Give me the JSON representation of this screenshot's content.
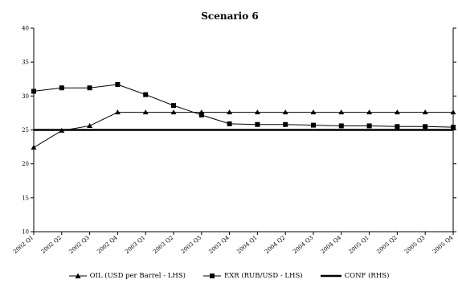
{
  "chart_data": {
    "type": "line",
    "title": "Scenario 6",
    "xlabel": "",
    "ylabel": "",
    "ylim": [
      10,
      40
    ],
    "yticks": [
      10,
      15,
      20,
      25,
      30,
      35,
      40
    ],
    "categories": [
      "2002 Q1",
      "2002 Q2",
      "2002 Q3",
      "2002 Q4",
      "2003 Q1",
      "2003 Q2",
      "2003 Q3",
      "2003 Q4",
      "2004 Q1",
      "2004 Q2",
      "2004 Q3",
      "2004 Q4",
      "2005 Q1",
      "2005 Q2",
      "2005 Q3",
      "2005 Q4"
    ],
    "series": [
      {
        "name": "OIL (USD per Barrel - LHS)",
        "marker": "triangle",
        "color": "#000000",
        "values": [
          22.4,
          24.9,
          25.6,
          27.6,
          27.6,
          27.6,
          27.6,
          27.6,
          27.6,
          27.6,
          27.6,
          27.6,
          27.6,
          27.6,
          27.6,
          27.6
        ]
      },
      {
        "name": "EXR (RUB/USD - LHS)",
        "marker": "square",
        "color": "#000000",
        "values": [
          30.7,
          31.2,
          31.2,
          31.7,
          30.2,
          28.6,
          27.2,
          25.9,
          25.8,
          25.8,
          25.7,
          25.6,
          25.6,
          25.5,
          25.5,
          25.4
        ]
      },
      {
        "name": "CONF (RHS)",
        "marker": "none",
        "color": "#000000",
        "values": [
          25.0,
          25.0,
          25.0,
          25.0,
          25.0,
          25.0,
          25.0,
          25.0,
          25.0,
          25.0,
          25.0,
          25.0,
          25.0,
          25.0,
          25.0,
          25.0
        ]
      }
    ],
    "legend_position": "bottom",
    "grid": false
  }
}
